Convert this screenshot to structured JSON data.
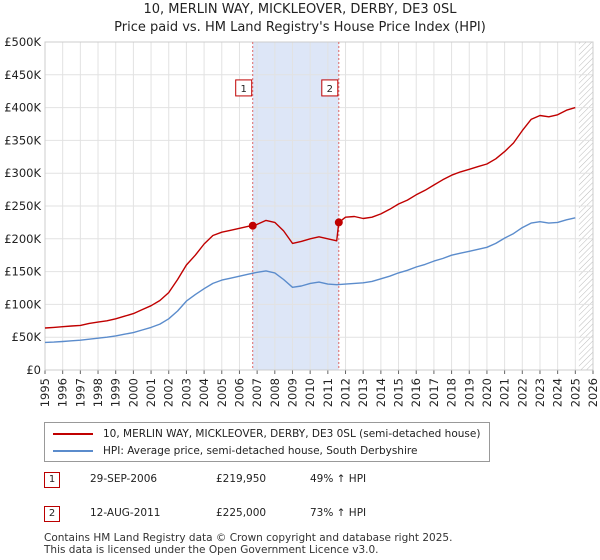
{
  "title": {
    "line1": "10, MERLIN WAY, MICKLEOVER, DERBY, DE3 0SL",
    "line2": "Price paid vs. HM Land Registry's House Price Index (HPI)"
  },
  "chart_data": {
    "type": "line",
    "x_range": [
      1995,
      2026
    ],
    "ylim": [
      0,
      500000
    ],
    "y_ticks": [
      {
        "value": 0,
        "label": "£0"
      },
      {
        "value": 50000,
        "label": "£50K"
      },
      {
        "value": 100000,
        "label": "£100K"
      },
      {
        "value": 150000,
        "label": "£150K"
      },
      {
        "value": 200000,
        "label": "£200K"
      },
      {
        "value": 250000,
        "label": "£250K"
      },
      {
        "value": 300000,
        "label": "£300K"
      },
      {
        "value": 350000,
        "label": "£350K"
      },
      {
        "value": 400000,
        "label": "£400K"
      },
      {
        "value": 450000,
        "label": "£450K"
      },
      {
        "value": 500000,
        "label": "£500K"
      }
    ],
    "x_ticks": [
      "1995",
      "1996",
      "1997",
      "1998",
      "1999",
      "2000",
      "2001",
      "2002",
      "2003",
      "2004",
      "2005",
      "2006",
      "2007",
      "2008",
      "2009",
      "2010",
      "2011",
      "2012",
      "2013",
      "2014",
      "2015",
      "2016",
      "2017",
      "2018",
      "2019",
      "2020",
      "2021",
      "2022",
      "2023",
      "2024",
      "2025",
      "2026"
    ],
    "grid": true,
    "shaded_region": {
      "from": 2006.75,
      "to": 2011.62,
      "color": "#dde6f7"
    },
    "hatched_future_from": 2025.2,
    "series": [
      {
        "name": "10, MERLIN WAY, MICKLEOVER, DERBY, DE3 0SL (semi-detached house)",
        "color": "#c00000",
        "points": [
          [
            1995,
            64000
          ],
          [
            1995.5,
            65000
          ],
          [
            1996,
            66000
          ],
          [
            1996.5,
            67000
          ],
          [
            1997,
            68000
          ],
          [
            1997.5,
            71000
          ],
          [
            1998,
            73000
          ],
          [
            1998.5,
            75000
          ],
          [
            1999,
            78000
          ],
          [
            1999.5,
            82000
          ],
          [
            2000,
            86000
          ],
          [
            2000.5,
            92000
          ],
          [
            2001,
            98000
          ],
          [
            2001.5,
            106000
          ],
          [
            2002,
            118000
          ],
          [
            2002.5,
            138000
          ],
          [
            2003,
            160000
          ],
          [
            2003.5,
            175000
          ],
          [
            2004,
            192000
          ],
          [
            2004.5,
            205000
          ],
          [
            2005,
            210000
          ],
          [
            2005.5,
            213000
          ],
          [
            2006,
            216000
          ],
          [
            2006.5,
            219000
          ],
          [
            2006.75,
            219950
          ],
          [
            2007,
            222000
          ],
          [
            2007.5,
            228000
          ],
          [
            2008,
            225000
          ],
          [
            2008.5,
            212000
          ],
          [
            2009,
            193000
          ],
          [
            2009.5,
            196000
          ],
          [
            2010,
            200000
          ],
          [
            2010.5,
            203000
          ],
          [
            2011,
            200000
          ],
          [
            2011.5,
            197000
          ],
          [
            2011.62,
            225000
          ],
          [
            2012,
            233000
          ],
          [
            2012.5,
            234000
          ],
          [
            2013,
            231000
          ],
          [
            2013.5,
            233000
          ],
          [
            2014,
            238000
          ],
          [
            2014.5,
            245000
          ],
          [
            2015,
            253000
          ],
          [
            2015.5,
            259000
          ],
          [
            2016,
            267000
          ],
          [
            2016.5,
            274000
          ],
          [
            2017,
            282000
          ],
          [
            2017.5,
            290000
          ],
          [
            2018,
            297000
          ],
          [
            2018.5,
            302000
          ],
          [
            2019,
            306000
          ],
          [
            2019.5,
            310000
          ],
          [
            2020,
            314000
          ],
          [
            2020.5,
            322000
          ],
          [
            2021,
            333000
          ],
          [
            2021.5,
            346000
          ],
          [
            2022,
            365000
          ],
          [
            2022.5,
            382000
          ],
          [
            2023,
            388000
          ],
          [
            2023.5,
            386000
          ],
          [
            2024,
            389000
          ],
          [
            2024.5,
            396000
          ],
          [
            2025,
            400000
          ]
        ]
      },
      {
        "name": "HPI: Average price, semi-detached house, South Derbyshire",
        "color": "#5b8ccc",
        "points": [
          [
            1995,
            42000
          ],
          [
            1995.5,
            42500
          ],
          [
            1996,
            43500
          ],
          [
            1996.5,
            44500
          ],
          [
            1997,
            45500
          ],
          [
            1997.5,
            47000
          ],
          [
            1998,
            48500
          ],
          [
            1998.5,
            50000
          ],
          [
            1999,
            52000
          ],
          [
            1999.5,
            54500
          ],
          [
            2000,
            57000
          ],
          [
            2000.5,
            61000
          ],
          [
            2001,
            65000
          ],
          [
            2001.5,
            70000
          ],
          [
            2002,
            78000
          ],
          [
            2002.5,
            90000
          ],
          [
            2003,
            105000
          ],
          [
            2003.5,
            115000
          ],
          [
            2004,
            124000
          ],
          [
            2004.5,
            132000
          ],
          [
            2005,
            137000
          ],
          [
            2005.5,
            140000
          ],
          [
            2006,
            143000
          ],
          [
            2006.5,
            146000
          ],
          [
            2007,
            149000
          ],
          [
            2007.5,
            151000
          ],
          [
            2008,
            148000
          ],
          [
            2008.5,
            138000
          ],
          [
            2009,
            126000
          ],
          [
            2009.5,
            128000
          ],
          [
            2010,
            132000
          ],
          [
            2010.5,
            134000
          ],
          [
            2011,
            131000
          ],
          [
            2011.5,
            130000
          ],
          [
            2012,
            131000
          ],
          [
            2012.5,
            132000
          ],
          [
            2013,
            133000
          ],
          [
            2013.5,
            135000
          ],
          [
            2014,
            139000
          ],
          [
            2014.5,
            143000
          ],
          [
            2015,
            148000
          ],
          [
            2015.5,
            152000
          ],
          [
            2016,
            157000
          ],
          [
            2016.5,
            161000
          ],
          [
            2017,
            166000
          ],
          [
            2017.5,
            170000
          ],
          [
            2018,
            175000
          ],
          [
            2018.5,
            178000
          ],
          [
            2019,
            181000
          ],
          [
            2019.5,
            184000
          ],
          [
            2020,
            187000
          ],
          [
            2020.5,
            193000
          ],
          [
            2021,
            201000
          ],
          [
            2021.5,
            208000
          ],
          [
            2022,
            217000
          ],
          [
            2022.5,
            224000
          ],
          [
            2023,
            226000
          ],
          [
            2023.5,
            224000
          ],
          [
            2024,
            225000
          ],
          [
            2024.5,
            229000
          ],
          [
            2025,
            232000
          ]
        ]
      }
    ],
    "sales": [
      {
        "num": "1",
        "x": 2006.75,
        "value": 219950
      },
      {
        "num": "2",
        "x": 2011.62,
        "value": 225000
      }
    ],
    "marker_label_value": 430000
  },
  "legend": {
    "property_label": "10, MERLIN WAY, MICKLEOVER, DERBY, DE3 0SL (semi-detached house)",
    "hpi_label": "HPI: Average price, semi-detached house, South Derbyshire",
    "property_color": "#c00000",
    "hpi_color": "#5b8ccc"
  },
  "sales_table": [
    {
      "num": "1",
      "date": "29-SEP-2006",
      "price": "£219,950",
      "hpi": "49% ↑ HPI"
    },
    {
      "num": "2",
      "date": "12-AUG-2011",
      "price": "£225,000",
      "hpi": "73% ↑ HPI"
    }
  ],
  "footer": {
    "line1": "Contains HM Land Registry data © Crown copyright and database right 2025.",
    "line2": "This data is licensed under the Open Government Licence v3.0."
  }
}
